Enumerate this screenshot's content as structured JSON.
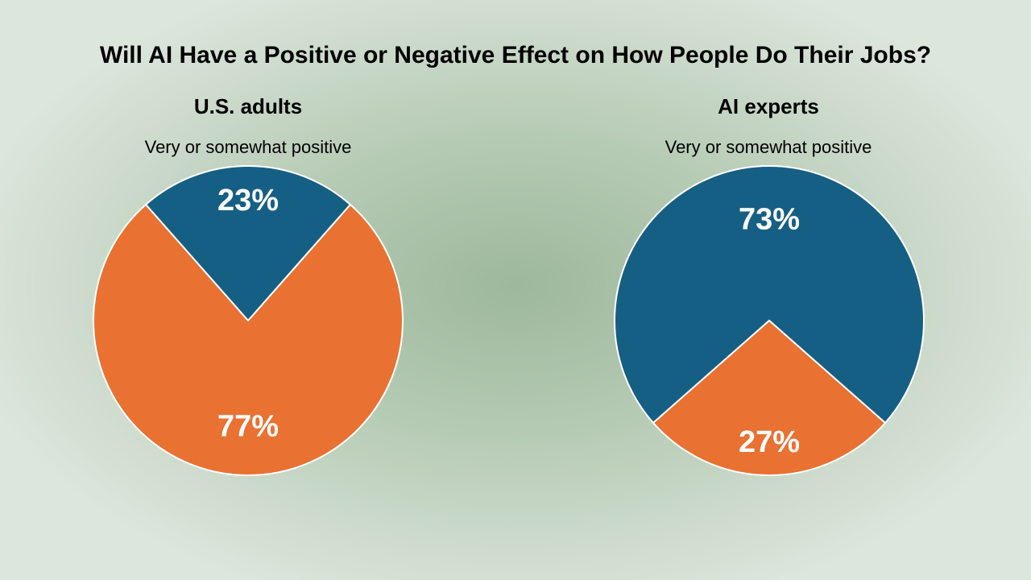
{
  "title": "Will AI Have a Positive or Negative Effect on How People Do Their Jobs?",
  "chart_data": [
    {
      "type": "pie",
      "title": "U.S. adults",
      "subtitle": "Very or somewhat positive",
      "slices": [
        {
          "label": "23%",
          "value": 23,
          "color": "#165f84"
        },
        {
          "label": "77%",
          "value": 77,
          "color": "#e97132"
        }
      ]
    },
    {
      "type": "pie",
      "title": "AI experts",
      "subtitle": "Very or somewhat positive",
      "slices": [
        {
          "label": "73%",
          "value": 73,
          "color": "#165f84"
        },
        {
          "label": "27%",
          "value": 27,
          "color": "#e97132"
        }
      ]
    }
  ]
}
